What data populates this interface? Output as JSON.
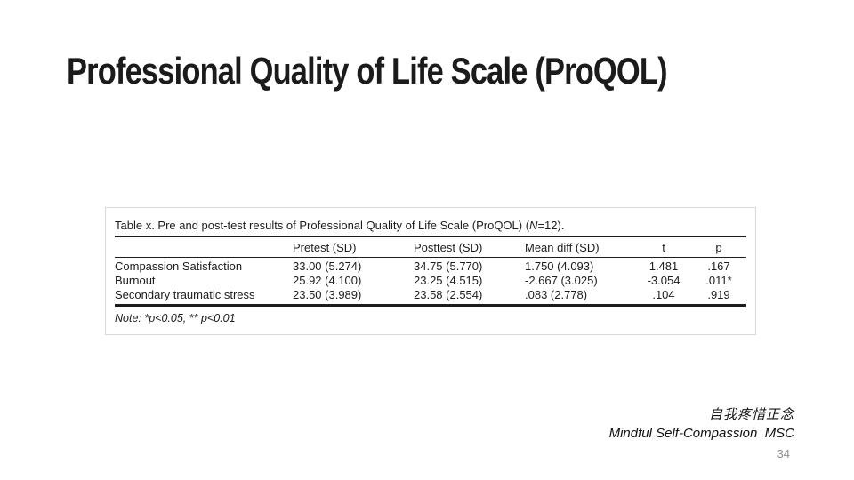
{
  "slide": {
    "title": "Professional Quality of Life Scale (ProQOL)",
    "page_number": "34"
  },
  "table": {
    "caption": {
      "lead": "Table x. Pre and post-test results of Professional Quality of Life Scale (ProQOL) (",
      "n": "N",
      "tail": "=12)."
    },
    "columns": [
      "",
      "Pretest (SD)",
      "Posttest (SD)",
      "Mean diff (SD)",
      "t",
      "p"
    ],
    "rows": [
      {
        "label": "Compassion Satisfaction",
        "pretest": "33.00 (5.274)",
        "posttest": "34.75 (5.770)",
        "mean_diff": "1.750 (4.093)",
        "t": "1.481",
        "p": ".167"
      },
      {
        "label": "Burnout",
        "pretest": "25.92 (4.100)",
        "posttest": "23.25 (4.515)",
        "mean_diff": "-2.667 (3.025)",
        "t": "-3.054",
        "p": ".011*"
      },
      {
        "label": "Secondary traumatic stress",
        "pretest": "23.50 (3.989)",
        "posttest": "23.58 (2.554)",
        "mean_diff": ".083 (2.778)",
        "t": ".104",
        "p": ".919"
      }
    ],
    "note": "Note: *p<0.05, ** p<0.01"
  },
  "footer": {
    "chinese_caption": "自我疼惜正念",
    "english_caption": "Mindful Self-Compassion  MSC"
  },
  "colors": {
    "text": "#1c1c1c",
    "rule": "#1c1c1c",
    "image_border": "#d9d9d9",
    "page_number_gray": "#8f8f8f"
  }
}
